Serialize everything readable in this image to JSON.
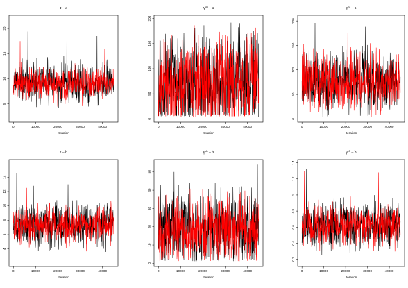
{
  "figure": {
    "xaxis_ticks": [
      "0",
      "10000",
      "20000",
      "30000",
      "40000"
    ]
  },
  "chart_data": [
    {
      "type": "line",
      "title": "τ – a",
      "xlabel": "Iteration",
      "xlim": [
        0,
        45000
      ],
      "ylim": [
        2,
        22
      ],
      "yticks": [
        5,
        10,
        15,
        20
      ],
      "series": [
        {
          "color": "#000000",
          "center": 9.0,
          "spread": 2.6,
          "spikes": [
            [
              24000,
              22
            ],
            [
              6500,
              19.4
            ],
            [
              37500,
              18.5
            ]
          ]
        },
        {
          "color": "#ff0000",
          "center": 9.0,
          "spread": 2.1,
          "spikes": [
            [
              3000,
              17.5
            ],
            [
              41000,
              16
            ]
          ]
        }
      ],
      "seed": 11
    },
    {
      "type": "line",
      "title": "γ^μh – a",
      "xlabel": "Iteration",
      "xlim": [
        0,
        45000
      ],
      "ylim": [
        0,
        200
      ],
      "yticks": [
        0,
        50,
        100,
        150,
        200
      ],
      "series": [
        {
          "color": "#000000",
          "center": 70,
          "spread": 60,
          "spikes": []
        },
        {
          "color": "#ff0000",
          "center": 70,
          "spread": 60,
          "spikes": []
        }
      ],
      "seed": 22
    },
    {
      "type": "line",
      "title": "γ^λλ – a",
      "xlabel": "Iteration",
      "xlim": [
        0,
        45000
      ],
      "ylim": [
        0,
        205
      ],
      "yticks": [
        0,
        50,
        100,
        150,
        200
      ],
      "series": [
        {
          "color": "#000000",
          "center": 75,
          "spread": 40,
          "spikes": [
            [
              6000,
              196
            ],
            [
              29000,
              188
            ]
          ]
        },
        {
          "color": "#ff0000",
          "center": 75,
          "spread": 35,
          "spikes": [
            [
              21000,
              175
            ]
          ]
        }
      ],
      "seed": 33
    },
    {
      "type": "line",
      "title": "τ – b",
      "xlabel": "Iteration",
      "xlim": [
        0,
        45000
      ],
      "ylim": [
        2,
        16
      ],
      "yticks": [
        4,
        6,
        8,
        10,
        12,
        14
      ],
      "series": [
        {
          "color": "#000000",
          "center": 7.3,
          "spread": 1.9,
          "spikes": [
            [
              1500,
              14.6
            ],
            [
              24500,
              13
            ],
            [
              9000,
              12.8
            ]
          ]
        },
        {
          "color": "#ff0000",
          "center": 7.3,
          "spread": 1.6,
          "spikes": [
            [
              6000,
              12.5
            ]
          ]
        }
      ],
      "seed": 44
    },
    {
      "type": "line",
      "title": "γ^μh – b",
      "xlabel": "Iteration",
      "xlim": [
        0,
        45000
      ],
      "ylim": [
        0,
        55
      ],
      "yticks": [
        0,
        10,
        20,
        30,
        40,
        50
      ],
      "series": [
        {
          "color": "#000000",
          "center": 18,
          "spread": 13,
          "spikes": [
            [
              44500,
              54
            ],
            [
              7000,
              50
            ]
          ]
        },
        {
          "color": "#ff0000",
          "center": 18,
          "spread": 12,
          "spikes": [
            [
              20000,
              46
            ]
          ]
        }
      ],
      "seed": 55
    },
    {
      "type": "line",
      "title": "γ^λλ – b",
      "xlabel": "Iteration",
      "xlim": [
        0,
        45000
      ],
      "ylim": [
        0.15,
        1.4
      ],
      "yticks": [
        0.2,
        0.4,
        0.6,
        0.8,
        1.0,
        1.2,
        1.4
      ],
      "series": [
        {
          "color": "#000000",
          "center": 0.62,
          "spread": 0.18,
          "spikes": [
            [
              2000,
              1.32
            ],
            [
              23000,
              1.24
            ]
          ]
        },
        {
          "color": "#ff0000",
          "center": 0.62,
          "spread": 0.16,
          "spikes": [
            [
              1000,
              1.3
            ],
            [
              35000,
              1.28
            ]
          ]
        }
      ],
      "seed": 66
    }
  ]
}
